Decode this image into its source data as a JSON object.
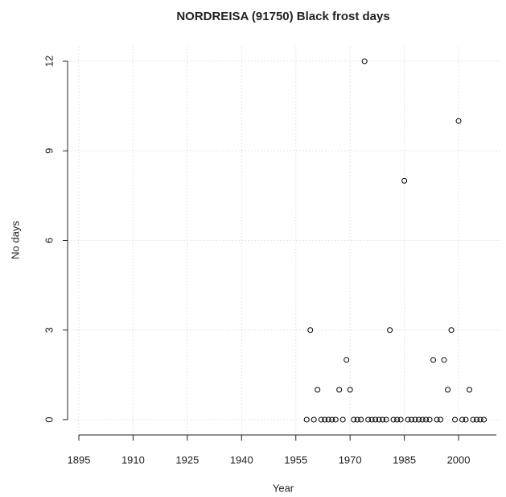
{
  "chart_data": {
    "type": "scatter",
    "title": "NORDREISA (91750) Black frost days",
    "x_label": "Year",
    "y_label": "No days",
    "x": [
      1958,
      1959,
      1960,
      1961,
      1962,
      1963,
      1964,
      1965,
      1966,
      1967,
      1968,
      1969,
      1970,
      1971,
      1972,
      1973,
      1974,
      1975,
      1976,
      1977,
      1978,
      1979,
      1980,
      1981,
      1982,
      1983,
      1984,
      1985,
      1986,
      1987,
      1988,
      1989,
      1990,
      1991,
      1992,
      1993,
      1994,
      1995,
      1996,
      1997,
      1998,
      1999,
      2000,
      2001,
      2002,
      2003,
      2004,
      2005,
      2006,
      2007
    ],
    "values": [
      0,
      3,
      0,
      1,
      0,
      0,
      0,
      0,
      0,
      1,
      0,
      2,
      1,
      0,
      0,
      0,
      12,
      0,
      0,
      0,
      0,
      0,
      0,
      3,
      0,
      0,
      0,
      8,
      0,
      0,
      0,
      0,
      0,
      0,
      0,
      2,
      0,
      0,
      2,
      1,
      3,
      0,
      10,
      0,
      0,
      1,
      0,
      0,
      0,
      0
    ],
    "color": "#000000",
    "xlim": [
      1892,
      2012
    ],
    "xticks": [
      1895,
      1910,
      1925,
      1940,
      1955,
      1970,
      1985,
      2000
    ],
    "ylim": [
      -0.5,
      12.5
    ],
    "yticks": [
      0,
      3,
      6,
      9,
      12
    ],
    "grid": true
  }
}
